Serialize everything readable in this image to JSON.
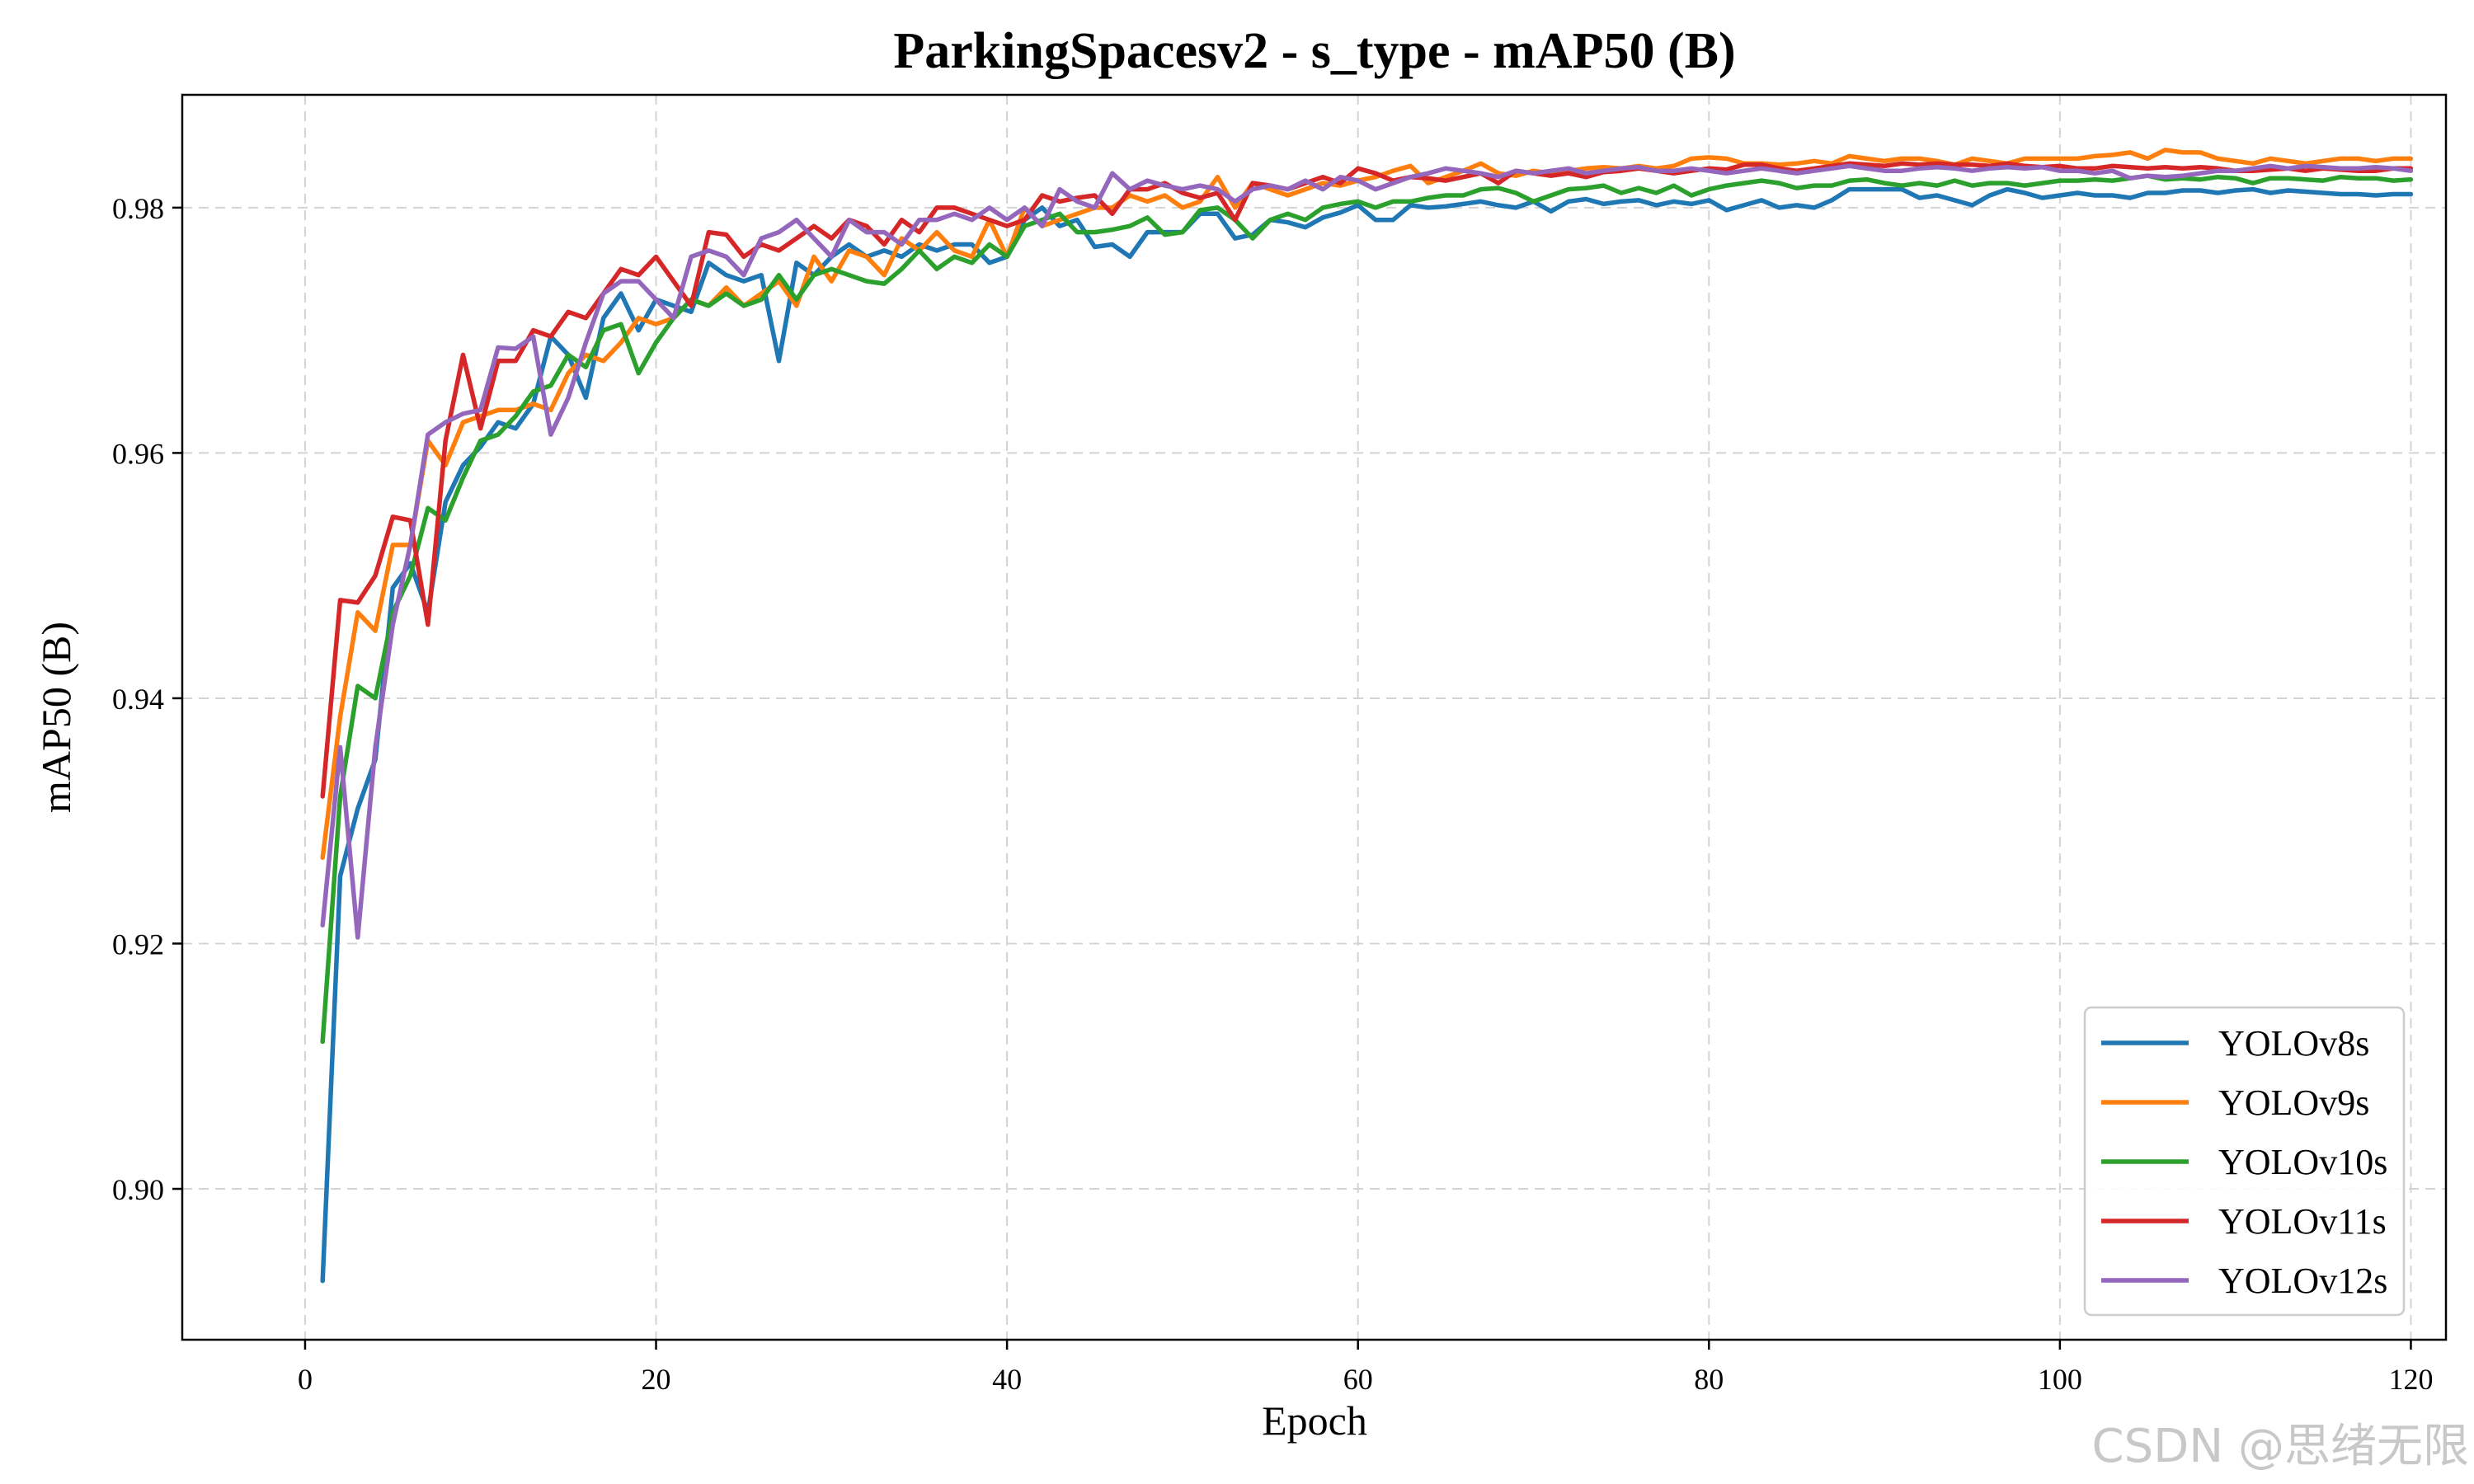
{
  "watermark": "CSDN @思绪无限",
  "chart_data": {
    "type": "line",
    "title": "ParkingSpacesv2 - s_type - mAP50 (B)",
    "xlabel": "Epoch",
    "ylabel": "mAP50 (B)",
    "xlim": [
      -7,
      122
    ],
    "ylim": [
      0.8877,
      0.9892
    ],
    "xticks": [
      0,
      20,
      40,
      60,
      80,
      100,
      120
    ],
    "yticks": [
      0.9,
      0.92,
      0.94,
      0.96,
      0.98
    ],
    "xtick_labels": [
      "0",
      "20",
      "40",
      "60",
      "80",
      "100",
      "120"
    ],
    "ytick_labels": [
      "0.90",
      "0.92",
      "0.94",
      "0.96",
      "0.98"
    ],
    "grid": true,
    "legend_position": "bottom-right",
    "x_start": 1,
    "x_end": 120,
    "series": [
      {
        "name": "YOLOv8s",
        "color": "#1f77b4",
        "values": [
          0.8925,
          0.9255,
          0.931,
          0.935,
          0.949,
          0.951,
          0.947,
          0.956,
          0.959,
          0.9605,
          0.9625,
          0.962,
          0.964,
          0.9695,
          0.968,
          0.9645,
          0.971,
          0.973,
          0.97,
          0.9725,
          0.972,
          0.9715,
          0.9755,
          0.9745,
          0.974,
          0.9745,
          0.9675,
          0.9755,
          0.9745,
          0.976,
          0.977,
          0.976,
          0.9765,
          0.976,
          0.977,
          0.9765,
          0.977,
          0.977,
          0.9755,
          0.976,
          0.979,
          0.98,
          0.9785,
          0.979,
          0.9768,
          0.977,
          0.976,
          0.978,
          0.978,
          0.978,
          0.9795,
          0.9795,
          0.9775,
          0.9778,
          0.979,
          0.9788,
          0.9784,
          0.9792,
          0.9796,
          0.9802,
          0.979,
          0.979,
          0.9802,
          0.98,
          0.9801,
          0.9803,
          0.9805,
          0.9802,
          0.98,
          0.9805,
          0.9797,
          0.9805,
          0.9807,
          0.9803,
          0.9805,
          0.9806,
          0.9802,
          0.9805,
          0.9803,
          0.9806,
          0.9798,
          0.9802,
          0.9806,
          0.98,
          0.9802,
          0.98,
          0.9806,
          0.9815,
          0.9815,
          0.9815,
          0.9815,
          0.9808,
          0.981,
          0.9806,
          0.9802,
          0.981,
          0.9815,
          0.9812,
          0.9808,
          0.981,
          0.9812,
          0.981,
          0.981,
          0.9808,
          0.9812,
          0.9812,
          0.9814,
          0.9814,
          0.9812,
          0.9814,
          0.9815,
          0.9812,
          0.9814,
          0.9813,
          0.9812,
          0.9811,
          0.9811,
          0.981,
          0.9811,
          0.9811
        ]
      },
      {
        "name": "YOLOv9s",
        "color": "#ff7f0e",
        "values": [
          0.927,
          0.9385,
          0.947,
          0.9455,
          0.9525,
          0.9525,
          0.961,
          0.959,
          0.9625,
          0.963,
          0.9635,
          0.9635,
          0.964,
          0.9635,
          0.9665,
          0.968,
          0.9675,
          0.969,
          0.971,
          0.9705,
          0.971,
          0.9725,
          0.972,
          0.9735,
          0.972,
          0.973,
          0.974,
          0.972,
          0.976,
          0.974,
          0.9765,
          0.976,
          0.9745,
          0.9775,
          0.9765,
          0.978,
          0.9765,
          0.976,
          0.979,
          0.976,
          0.98,
          0.9785,
          0.979,
          0.9795,
          0.98,
          0.98,
          0.981,
          0.9805,
          0.981,
          0.98,
          0.9805,
          0.9825,
          0.98,
          0.982,
          0.9815,
          0.981,
          0.9815,
          0.982,
          0.9818,
          0.9822,
          0.9825,
          0.983,
          0.9834,
          0.982,
          0.9825,
          0.983,
          0.9836,
          0.9828,
          0.9826,
          0.983,
          0.9828,
          0.983,
          0.9832,
          0.9833,
          0.9832,
          0.9834,
          0.9832,
          0.9834,
          0.984,
          0.9841,
          0.984,
          0.9836,
          0.9836,
          0.9835,
          0.9836,
          0.9838,
          0.9836,
          0.9842,
          0.984,
          0.9838,
          0.984,
          0.984,
          0.9838,
          0.9835,
          0.984,
          0.9838,
          0.9836,
          0.984,
          0.984,
          0.984,
          0.984,
          0.9842,
          0.9843,
          0.9845,
          0.984,
          0.9847,
          0.9845,
          0.9845,
          0.984,
          0.9838,
          0.9836,
          0.984,
          0.9838,
          0.9836,
          0.9838,
          0.984,
          0.984,
          0.9838,
          0.984,
          0.984
        ]
      },
      {
        "name": "YOLOv10s",
        "color": "#2ca02c",
        "values": [
          0.912,
          0.932,
          0.941,
          0.94,
          0.947,
          0.95,
          0.9555,
          0.9545,
          0.958,
          0.961,
          0.9615,
          0.963,
          0.965,
          0.9655,
          0.968,
          0.967,
          0.97,
          0.9705,
          0.9665,
          0.969,
          0.971,
          0.9725,
          0.972,
          0.973,
          0.972,
          0.9725,
          0.9745,
          0.9725,
          0.9745,
          0.975,
          0.9745,
          0.974,
          0.9738,
          0.975,
          0.9765,
          0.975,
          0.976,
          0.9755,
          0.977,
          0.976,
          0.9785,
          0.979,
          0.9795,
          0.978,
          0.978,
          0.9782,
          0.9785,
          0.9792,
          0.9778,
          0.978,
          0.9798,
          0.98,
          0.979,
          0.9775,
          0.979,
          0.9795,
          0.979,
          0.98,
          0.9803,
          0.9805,
          0.98,
          0.9805,
          0.9805,
          0.9808,
          0.981,
          0.981,
          0.9815,
          0.9816,
          0.9812,
          0.9805,
          0.981,
          0.9815,
          0.9816,
          0.9818,
          0.9812,
          0.9816,
          0.9812,
          0.9818,
          0.981,
          0.9815,
          0.9818,
          0.982,
          0.9822,
          0.982,
          0.9816,
          0.9818,
          0.9818,
          0.9822,
          0.9823,
          0.982,
          0.9818,
          0.982,
          0.9818,
          0.9822,
          0.9818,
          0.982,
          0.982,
          0.9818,
          0.982,
          0.9822,
          0.9822,
          0.9823,
          0.9822,
          0.9824,
          0.9826,
          0.9823,
          0.9824,
          0.9823,
          0.9825,
          0.9824,
          0.982,
          0.9824,
          0.9824,
          0.9823,
          0.9822,
          0.9825,
          0.9824,
          0.9824,
          0.9822,
          0.9823
        ]
      },
      {
        "name": "YOLOv11s",
        "color": "#d62728",
        "values": [
          0.932,
          0.948,
          0.9478,
          0.95,
          0.9548,
          0.9545,
          0.946,
          0.961,
          0.968,
          0.962,
          0.9675,
          0.9675,
          0.97,
          0.9695,
          0.9715,
          0.971,
          0.973,
          0.975,
          0.9745,
          0.976,
          0.974,
          0.972,
          0.978,
          0.9778,
          0.976,
          0.977,
          0.9765,
          0.9775,
          0.9785,
          0.9775,
          0.979,
          0.9785,
          0.977,
          0.979,
          0.978,
          0.98,
          0.98,
          0.9795,
          0.979,
          0.9785,
          0.979,
          0.981,
          0.9805,
          0.9808,
          0.981,
          0.9795,
          0.9815,
          0.9815,
          0.982,
          0.9812,
          0.9808,
          0.9812,
          0.979,
          0.982,
          0.9818,
          0.9815,
          0.982,
          0.9825,
          0.982,
          0.9832,
          0.9828,
          0.9822,
          0.9825,
          0.9824,
          0.9822,
          0.9825,
          0.9828,
          0.982,
          0.983,
          0.9828,
          0.9826,
          0.9828,
          0.9825,
          0.9829,
          0.983,
          0.9832,
          0.983,
          0.9828,
          0.983,
          0.9832,
          0.9831,
          0.9835,
          0.9835,
          0.9832,
          0.983,
          0.9832,
          0.9834,
          0.9836,
          0.9835,
          0.9834,
          0.9836,
          0.9835,
          0.9836,
          0.9835,
          0.9835,
          0.9834,
          0.9836,
          0.9834,
          0.9833,
          0.9834,
          0.9832,
          0.9832,
          0.9834,
          0.9833,
          0.9832,
          0.9833,
          0.9832,
          0.9833,
          0.9832,
          0.983,
          0.983,
          0.9831,
          0.9832,
          0.983,
          0.9832,
          0.9831,
          0.983,
          0.983,
          0.9832,
          0.9832
        ]
      },
      {
        "name": "YOLOv12s",
        "color": "#9467bd",
        "values": [
          0.9215,
          0.936,
          0.9205,
          0.936,
          0.946,
          0.9525,
          0.9615,
          0.9625,
          0.9632,
          0.9635,
          0.9686,
          0.9685,
          0.9695,
          0.9615,
          0.9645,
          0.969,
          0.973,
          0.974,
          0.974,
          0.9725,
          0.971,
          0.976,
          0.9765,
          0.976,
          0.9745,
          0.9775,
          0.978,
          0.979,
          0.9775,
          0.976,
          0.979,
          0.978,
          0.978,
          0.977,
          0.979,
          0.979,
          0.9795,
          0.979,
          0.98,
          0.979,
          0.98,
          0.9785,
          0.9815,
          0.9805,
          0.98,
          0.9828,
          0.9815,
          0.9822,
          0.9818,
          0.9815,
          0.9818,
          0.9815,
          0.9805,
          0.9815,
          0.9818,
          0.9815,
          0.9822,
          0.9815,
          0.9825,
          0.9822,
          0.9815,
          0.982,
          0.9825,
          0.9828,
          0.9832,
          0.983,
          0.9828,
          0.9825,
          0.983,
          0.9828,
          0.983,
          0.9832,
          0.9828,
          0.983,
          0.9832,
          0.9833,
          0.983,
          0.983,
          0.9832,
          0.983,
          0.9828,
          0.983,
          0.9832,
          0.983,
          0.9828,
          0.983,
          0.9832,
          0.9834,
          0.9832,
          0.983,
          0.983,
          0.9832,
          0.9833,
          0.9832,
          0.983,
          0.9832,
          0.9833,
          0.9832,
          0.9833,
          0.983,
          0.983,
          0.9828,
          0.983,
          0.9824,
          0.9826,
          0.9825,
          0.9826,
          0.9828,
          0.983,
          0.983,
          0.9832,
          0.9834,
          0.9832,
          0.9834,
          0.9833,
          0.9832,
          0.9832,
          0.9833,
          0.9832,
          0.983
        ]
      }
    ]
  }
}
